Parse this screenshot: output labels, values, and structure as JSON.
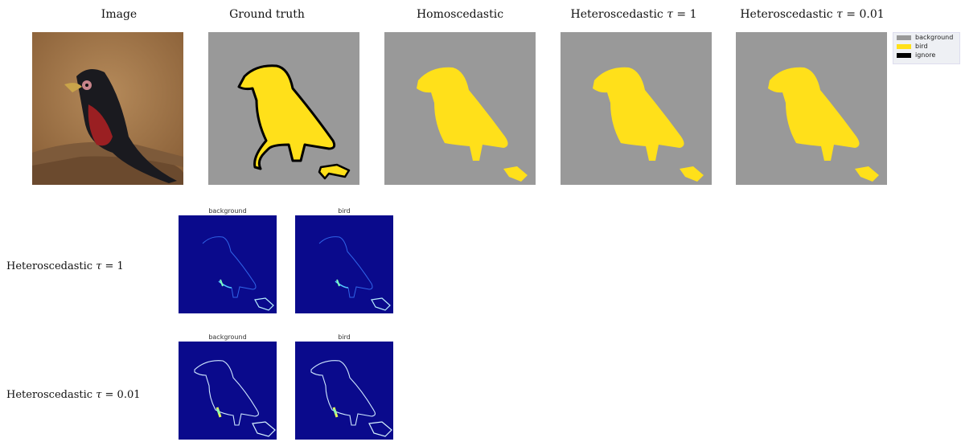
{
  "columns": {
    "image": "Image",
    "ground_truth": "Ground truth",
    "homoscedastic": "Homoscedastic",
    "het_1": {
      "prefix": "Heteroscedastic ",
      "symbol": "τ",
      "value": " = 1"
    },
    "het_001": {
      "prefix": "Heteroscedastic ",
      "symbol": "τ",
      "value": " = 0.01"
    }
  },
  "legend": [
    {
      "label": "background",
      "color": "#999999"
    },
    {
      "label": "bird",
      "color": "#FFE01A"
    },
    {
      "label": "ignore",
      "color": "#000000"
    }
  ],
  "rows": [
    {
      "label_prefix": "Heteroscedastic ",
      "label_symbol": "τ",
      "label_value": " = 1",
      "maps": [
        "background",
        "bird"
      ]
    },
    {
      "label_prefix": "Heteroscedastic ",
      "label_symbol": "τ",
      "label_value": " = 0.01",
      "maps": [
        "background",
        "bird"
      ]
    }
  ],
  "colors": {
    "background_class": "#999999",
    "bird_class": "#FFE01A",
    "uncertainty_low": "#0a0a8c"
  }
}
